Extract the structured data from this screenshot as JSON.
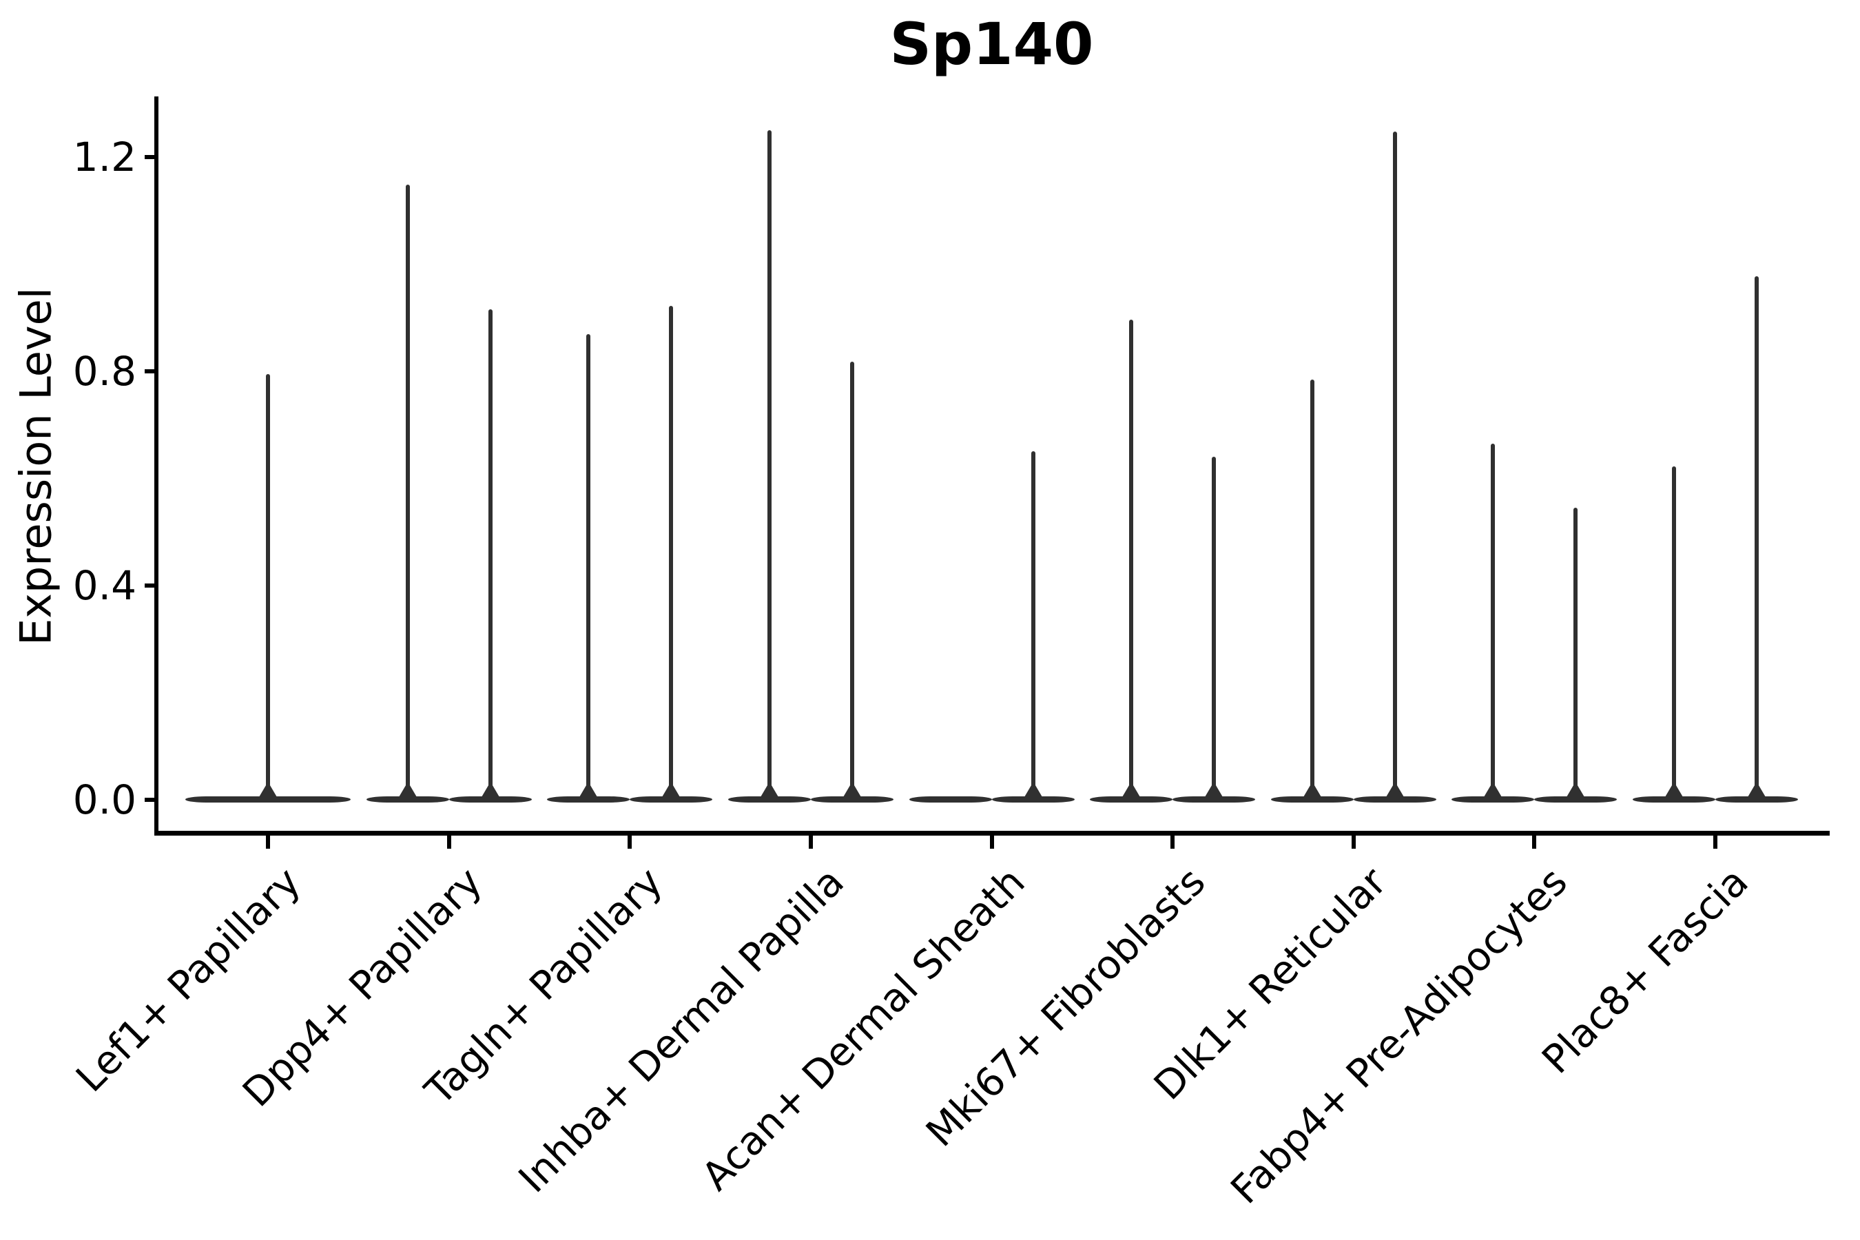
{
  "chart_data": {
    "type": "violin",
    "title": "Sp140",
    "xlabel": "",
    "ylabel": "Expression Level",
    "yticks": [
      0.0,
      0.4,
      0.8,
      1.2
    ],
    "ytick_labels": [
      "0.0",
      "0.4",
      "0.8",
      "1.2"
    ],
    "ylim": [
      -0.06,
      1.31
    ],
    "grid": false,
    "legend": "none",
    "line_color": "#303030",
    "axis_color": "#000000",
    "background_color": "#ffffff",
    "categories": [
      "Lef1+ Papillary",
      "Dpp4+ Papillary",
      "Tagln+ Papillary",
      "Inhba+ Dermal Papilla",
      "Acan+ Dermal Sheath",
      "Mki67+ Fibroblasts",
      "Dlk1+ Reticular",
      "Fabp4+ Pre-Adipocytes",
      "Plac8+ Fascia"
    ],
    "groups": [
      {
        "label": "Lef1+ Papillary",
        "violins": [
          {
            "slot": "center",
            "span": "full",
            "peak": 0.795
          }
        ]
      },
      {
        "label": "Dpp4+ Papillary",
        "violins": [
          {
            "slot": "left",
            "peak": 1.149
          },
          {
            "slot": "right",
            "peak": 0.916
          }
        ]
      },
      {
        "label": "Tagln+ Papillary",
        "violins": [
          {
            "slot": "left",
            "peak": 0.869
          },
          {
            "slot": "right",
            "peak": 0.922
          }
        ]
      },
      {
        "label": "Inhba+ Dermal Papilla",
        "violins": [
          {
            "slot": "left",
            "peak": 1.25
          },
          {
            "slot": "right",
            "peak": 0.818
          }
        ]
      },
      {
        "label": "Acan+ Dermal Sheath",
        "violins": [
          {
            "slot": "left",
            "peak": 0.0
          },
          {
            "slot": "right",
            "peak": 0.651
          }
        ]
      },
      {
        "label": "Mki67+ Fibroblasts",
        "violins": [
          {
            "slot": "left",
            "peak": 0.896
          },
          {
            "slot": "right",
            "peak": 0.64
          }
        ]
      },
      {
        "label": "Dlk1+ Reticular",
        "violins": [
          {
            "slot": "left",
            "peak": 0.784
          },
          {
            "slot": "right",
            "peak": 1.247
          }
        ]
      },
      {
        "label": "Fabp4+ Pre-Adipocytes",
        "violins": [
          {
            "slot": "left",
            "peak": 0.665
          },
          {
            "slot": "right",
            "peak": 0.545
          }
        ]
      },
      {
        "label": "Plac8+ Fascia",
        "violins": [
          {
            "slot": "left",
            "peak": 0.622
          },
          {
            "slot": "right",
            "peak": 0.977
          }
        ]
      }
    ]
  }
}
